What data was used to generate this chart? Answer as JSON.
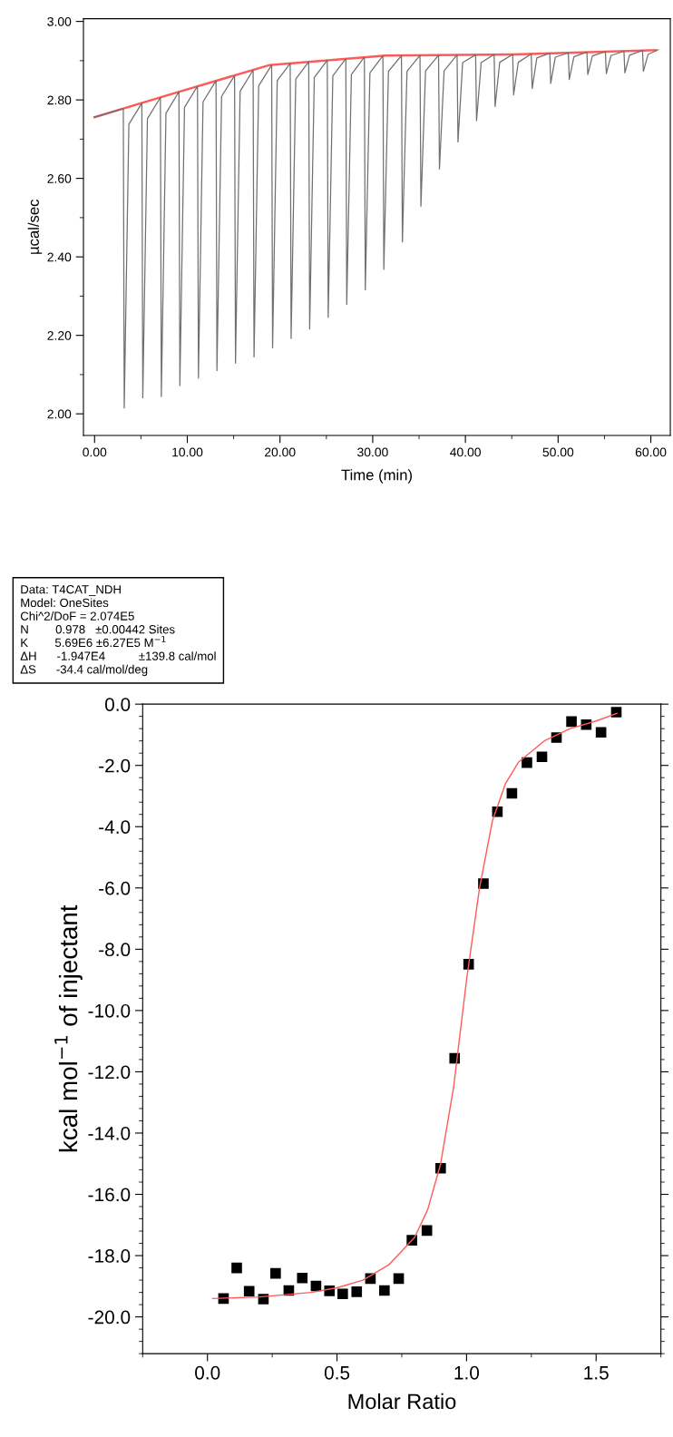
{
  "chart_data": [
    {
      "type": "line",
      "xlabel": "Time (min)",
      "ylabel": "µcal/sec",
      "xlim": [
        -1.2,
        62.1
      ],
      "ylim": [
        1.945,
        3.007
      ],
      "xticks": [
        {
          "value": 0,
          "label": "0.00"
        },
        {
          "value": 10,
          "label": "10.00"
        },
        {
          "value": 20,
          "label": "20.00"
        },
        {
          "value": 30,
          "label": "30.00"
        },
        {
          "value": 40,
          "label": "40.00"
        },
        {
          "value": 50,
          "label": "50.00"
        },
        {
          "value": 60,
          "label": "60.00"
        }
      ],
      "yticks": [
        {
          "value": 2.0,
          "label": "2.00"
        },
        {
          "value": 2.2,
          "label": "2.20"
        },
        {
          "value": 2.4,
          "label": "2.40"
        },
        {
          "value": 2.6,
          "label": "2.60"
        },
        {
          "value": 2.8,
          "label": "2.80"
        },
        {
          "value": 3.0,
          "label": "3.00"
        }
      ],
      "grid": false,
      "series": [
        {
          "color": "#707070",
          "x": [
            0.0,
            3.1,
            3.2,
            3.7,
            5.1,
            5.2,
            5.7,
            7.1,
            7.2,
            7.7,
            9.1,
            9.2,
            9.7,
            11.1,
            11.2,
            11.7,
            13.1,
            13.2,
            13.7,
            15.1,
            15.2,
            15.7,
            17.1,
            17.2,
            17.7,
            19.1,
            19.2,
            19.7,
            21.1,
            21.2,
            21.7,
            23.1,
            23.2,
            23.7,
            25.1,
            25.2,
            25.7,
            27.1,
            27.2,
            27.7,
            29.1,
            29.2,
            29.7,
            31.1,
            31.2,
            31.7,
            33.1,
            33.2,
            33.7,
            35.1,
            35.2,
            35.7,
            37.1,
            37.2,
            37.7,
            39.1,
            39.2,
            39.7,
            41.1,
            41.2,
            41.7,
            43.1,
            43.2,
            43.7,
            45.1,
            45.2,
            45.7,
            47.1,
            47.2,
            47.7,
            49.1,
            49.2,
            49.7,
            51.1,
            51.2,
            51.7,
            53.1,
            53.2,
            53.7,
            55.1,
            55.2,
            55.7,
            57.1,
            57.2,
            57.7,
            59.1,
            59.2,
            59.7,
            60.8
          ],
          "values": [
            2.756,
            2.778,
            2.015,
            2.738,
            2.792,
            2.041,
            2.752,
            2.806,
            2.044,
            2.766,
            2.821,
            2.072,
            2.781,
            2.835,
            2.091,
            2.795,
            2.849,
            2.11,
            2.809,
            2.862,
            2.129,
            2.822,
            2.876,
            2.145,
            2.836,
            2.889,
            2.168,
            2.849,
            2.893,
            2.192,
            2.853,
            2.897,
            2.216,
            2.857,
            2.901,
            2.246,
            2.861,
            2.905,
            2.279,
            2.865,
            2.909,
            2.316,
            2.869,
            2.913,
            2.368,
            2.873,
            2.913,
            2.438,
            2.873,
            2.914,
            2.529,
            2.874,
            2.914,
            2.624,
            2.874,
            2.915,
            2.693,
            2.895,
            2.915,
            2.747,
            2.895,
            2.916,
            2.783,
            2.896,
            2.916,
            2.813,
            2.896,
            2.917,
            2.829,
            2.907,
            2.919,
            2.842,
            2.909,
            2.92,
            2.852,
            2.91,
            2.922,
            2.865,
            2.912,
            2.923,
            2.867,
            2.913,
            2.924,
            2.869,
            2.914,
            2.926,
            2.873,
            2.916,
            2.928
          ]
        },
        {
          "color": "#ff5a5a",
          "x": [
            0.0,
            8.3,
            18.9,
            31.4,
            45.3,
            60.5
          ],
          "values": [
            2.756,
            2.815,
            2.889,
            2.913,
            2.916,
            2.927
          ]
        }
      ]
    },
    {
      "type": "scatter",
      "xlabel": "Molar Ratio",
      "ylabel": "kcal mol$^{−1}$ of injectant",
      "xlim": [
        -0.25,
        1.75
      ],
      "ylim": [
        -21.2,
        0.0
      ],
      "xticks": [
        {
          "value": 0.0,
          "label": "0.0"
        },
        {
          "value": 0.5,
          "label": "0.5"
        },
        {
          "value": 1.0,
          "label": "1.0"
        },
        {
          "value": 1.5,
          "label": "1.5"
        }
      ],
      "yticks": [
        {
          "value": -20,
          "label": "-20.0"
        },
        {
          "value": -18,
          "label": "-18.0"
        },
        {
          "value": -16,
          "label": "-16.0"
        },
        {
          "value": -14,
          "label": "-14.0"
        },
        {
          "value": -12,
          "label": "-12.0"
        },
        {
          "value": -10,
          "label": "-10.0"
        },
        {
          "value": -8,
          "label": "-8.0"
        },
        {
          "value": -6,
          "label": "-6.0"
        },
        {
          "value": -4,
          "label": "-4.0"
        },
        {
          "value": -2,
          "label": "-2.0"
        },
        {
          "value": 0,
          "label": "0.0"
        }
      ],
      "grid": false,
      "annotations": [
        "Data: T4CAT_NDH",
        "Model: OneSites",
        "Chi^2/DoF = 2.074E5",
        "N        0.978   ±0.00442 Sites",
        "K        5.69E6 ±6.27E5 M$^{−1}$",
        "ΔH      -1.947E4          ±139.8 cal/mol",
        "ΔS      -34.4 cal/mol/deg"
      ],
      "series": [
        {
          "type": "scatter",
          "color": "#000000",
          "marker": "square",
          "x": [
            0.062,
            0.113,
            0.161,
            0.216,
            0.263,
            0.314,
            0.366,
            0.419,
            0.471,
            0.522,
            0.576,
            0.629,
            0.683,
            0.738,
            0.789,
            0.847,
            0.9,
            0.954,
            1.008,
            1.065,
            1.119,
            1.175,
            1.233,
            1.291,
            1.347,
            1.405,
            1.462,
            1.519,
            1.578
          ],
          "values": [
            -19.4,
            -18.4,
            -19.16,
            -19.42,
            -18.58,
            -19.14,
            -18.73,
            -18.99,
            -19.15,
            -19.25,
            -19.18,
            -18.75,
            -19.14,
            -18.75,
            -17.5,
            -17.18,
            -15.15,
            -11.56,
            -8.49,
            -5.86,
            -3.51,
            -2.91,
            -1.91,
            -1.72,
            -1.09,
            -0.57,
            -0.67,
            -0.92,
            -0.26
          ]
        },
        {
          "type": "line",
          "color": "#ff5a5a",
          "x": [
            0.02,
            0.2,
            0.4,
            0.5,
            0.6,
            0.7,
            0.8,
            0.85,
            0.9,
            0.95,
            1.0,
            1.05,
            1.1,
            1.15,
            1.2,
            1.3,
            1.4,
            1.5,
            1.58
          ],
          "values": [
            -19.4,
            -19.35,
            -19.2,
            -19.05,
            -18.8,
            -18.3,
            -17.4,
            -16.5,
            -15.0,
            -12.5,
            -9.0,
            -6.0,
            -3.8,
            -2.6,
            -1.9,
            -1.2,
            -0.8,
            -0.55,
            -0.3
          ]
        }
      ]
    }
  ]
}
